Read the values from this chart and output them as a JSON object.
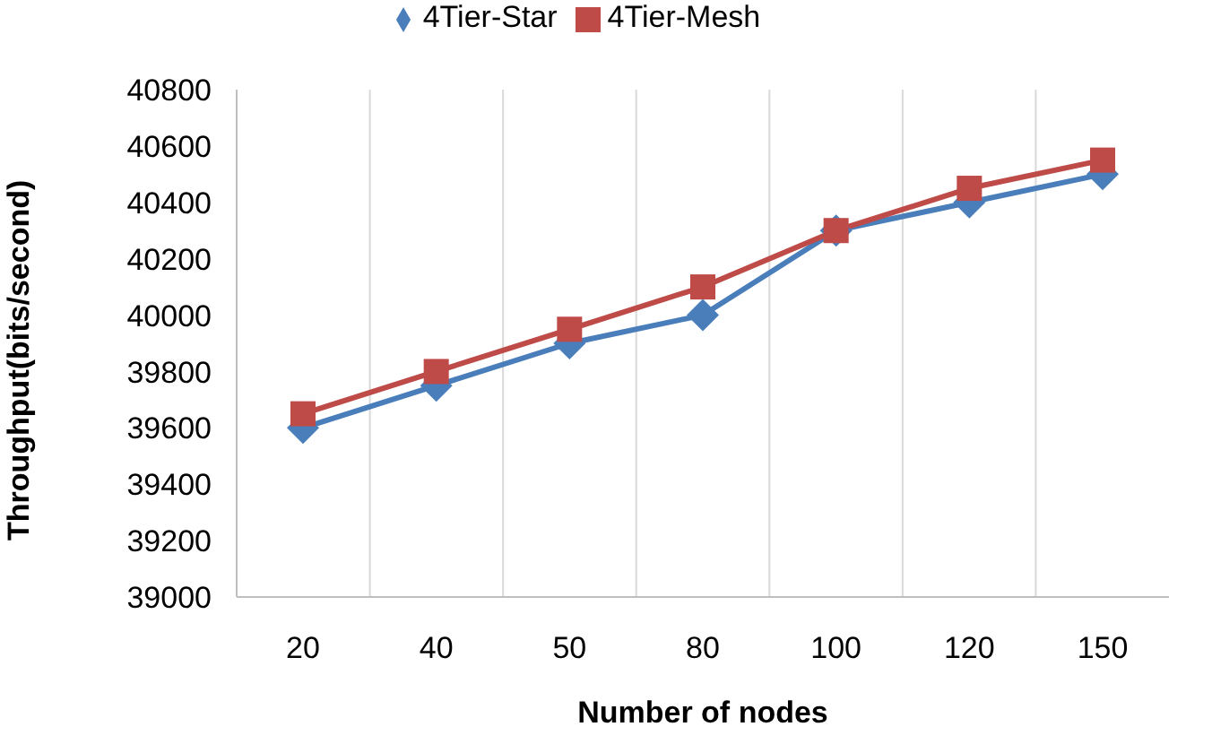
{
  "chart_data": {
    "type": "line",
    "xlabel": "Number of nodes",
    "ylabel": "Throughput(bits/second)",
    "categories": [
      "20",
      "40",
      "50",
      "80",
      "100",
      "120",
      "150"
    ],
    "series": [
      {
        "name": "4Tier-Star",
        "color": "#4a7ebb",
        "marker": "diamond",
        "values": [
          39600,
          39750,
          39900,
          40000,
          40300,
          40400,
          40500
        ]
      },
      {
        "name": "4Tier-Mesh",
        "color": "#be4b48",
        "marker": "square",
        "values": [
          39650,
          39800,
          39950,
          40100,
          40300,
          40450,
          40550
        ]
      }
    ],
    "ylim": [
      39000,
      40800
    ],
    "yticks": [
      39000,
      39200,
      39400,
      39600,
      39800,
      40000,
      40200,
      40400,
      40600,
      40800
    ],
    "grid": "x",
    "legend": "top",
    "line_style": "solid"
  }
}
